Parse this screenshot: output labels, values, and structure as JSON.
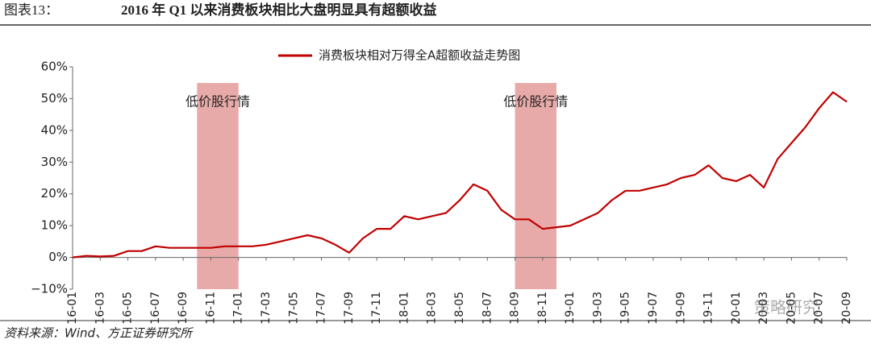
{
  "header": {
    "label": "图表13：",
    "title": "2016 年 Q1 以来消费板块相比大盘明显具有超额收益"
  },
  "chart_data": {
    "type": "line",
    "x": [
      "16-01",
      "16-02",
      "16-03",
      "16-04",
      "16-05",
      "16-06",
      "16-07",
      "16-08",
      "16-09",
      "16-10",
      "16-11",
      "16-12",
      "17-01",
      "17-02",
      "17-03",
      "17-04",
      "17-05",
      "17-06",
      "17-07",
      "17-08",
      "17-09",
      "17-10",
      "17-11",
      "17-12",
      "18-01",
      "18-02",
      "18-03",
      "18-04",
      "18-05",
      "18-06",
      "18-07",
      "18-08",
      "18-09",
      "18-10",
      "18-11",
      "18-12",
      "19-01",
      "19-02",
      "19-03",
      "19-04",
      "19-05",
      "19-06",
      "19-07",
      "19-08",
      "19-09",
      "19-10",
      "19-11",
      "19-12",
      "20-01",
      "20-02",
      "20-03",
      "20-04",
      "20-05",
      "20-06",
      "20-07",
      "20-08",
      "20-09"
    ],
    "series": [
      {
        "name": "消费板块相对万得全A超额收益走势图",
        "color": "#c00000",
        "values": [
          0,
          0.5,
          0.3,
          0.5,
          2,
          2,
          3.5,
          3,
          3,
          3,
          3,
          3.5,
          3.5,
          3.5,
          4,
          5,
          6,
          7,
          6,
          4,
          1.5,
          6,
          9,
          9,
          13,
          12,
          13,
          14,
          18,
          23,
          21,
          15,
          12,
          12,
          9,
          9.5,
          10,
          12,
          14,
          18,
          21,
          21,
          22,
          23,
          25,
          26,
          29,
          25,
          24,
          26,
          22,
          31,
          36,
          41,
          47,
          52,
          49
        ]
      }
    ],
    "xticks": [
      "16-01",
      "16-03",
      "16-05",
      "16-07",
      "16-09",
      "16-11",
      "17-01",
      "17-03",
      "17-05",
      "17-07",
      "17-09",
      "17-11",
      "18-01",
      "18-03",
      "18-05",
      "18-07",
      "18-09",
      "18-11",
      "19-01",
      "19-03",
      "19-05",
      "19-07",
      "19-09",
      "19-11",
      "20-01",
      "20-03",
      "20-05",
      "20-07",
      "20-09"
    ],
    "ylim": [
      -10,
      60
    ],
    "yticks": [
      {
        "value": -10,
        "label": "−10%"
      },
      {
        "value": 0,
        "label": "0%"
      },
      {
        "value": 10,
        "label": "10%"
      },
      {
        "value": 20,
        "label": "20%"
      },
      {
        "value": 30,
        "label": "30%"
      },
      {
        "value": 40,
        "label": "40%"
      },
      {
        "value": 50,
        "label": "50%"
      },
      {
        "value": 60,
        "label": "60%"
      }
    ],
    "shaded": [
      {
        "label": "低价股行情",
        "start": "16-10",
        "end": "17-01",
        "color": "#e8aaa8"
      },
      {
        "label": "低价股行情",
        "start": "18-09",
        "end": "18-12",
        "color": "#e8aaa8"
      }
    ]
  },
  "watermark": "策略研究",
  "source": "资料来源：Wind、方正证券研究所"
}
